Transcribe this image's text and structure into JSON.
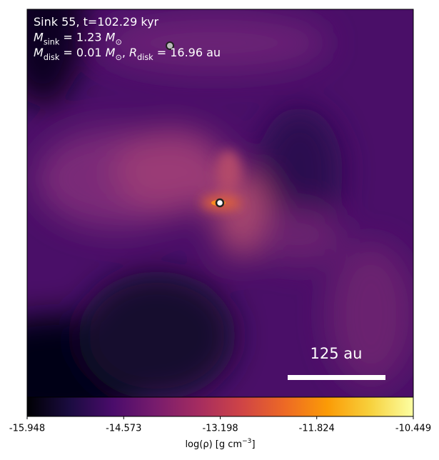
{
  "chart_data": {
    "type": "density_map",
    "colormap": "inferno",
    "info_lines": [
      [
        {
          "text": "Sink 55, t=102.29 kyr",
          "style": "normal"
        }
      ],
      [
        {
          "text": "M",
          "style": "italic"
        },
        {
          "text": "sink",
          "style": "sub"
        },
        {
          "text": " = 1.23 ",
          "style": "normal"
        },
        {
          "text": "M",
          "style": "italic"
        },
        {
          "text": "⊙",
          "style": "sub"
        }
      ],
      [
        {
          "text": "M",
          "style": "italic"
        },
        {
          "text": "disk",
          "style": "sub"
        },
        {
          "text": " = 0.01 ",
          "style": "normal"
        },
        {
          "text": "M",
          "style": "italic"
        },
        {
          "text": "⊙",
          "style": "sub"
        },
        {
          "text": ", ",
          "style": "normal"
        },
        {
          "text": "R",
          "style": "italic"
        },
        {
          "text": "disk",
          "style": "sub"
        },
        {
          "text": " = 16.96 au",
          "style": "normal"
        }
      ]
    ],
    "scale_bar_label": "125 au",
    "colorbar_label": [
      {
        "text": "log(ρ) [g cm",
        "style": "normal"
      },
      {
        "text": "−3",
        "style": "sup"
      },
      {
        "text": "]",
        "style": "normal"
      }
    ],
    "xlim": [
      -15.948,
      -10.449
    ],
    "xticks": [
      -15.948,
      -14.573,
      -13.198,
      -11.824,
      -10.449
    ]
  }
}
